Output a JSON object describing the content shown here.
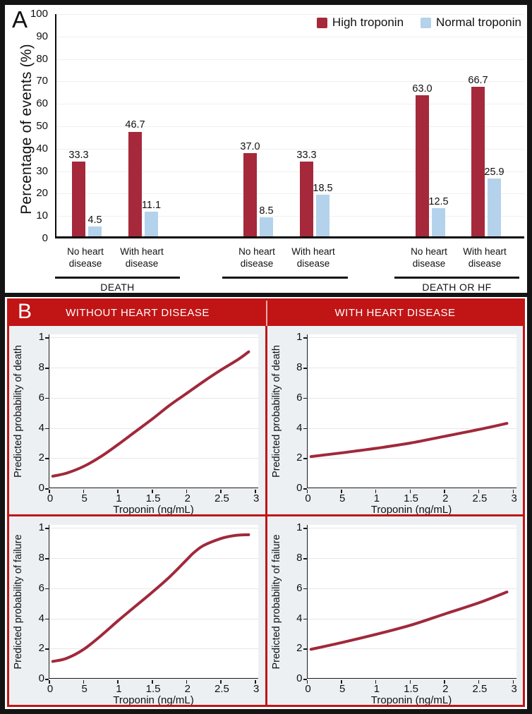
{
  "figure": {
    "panelA_label": "A",
    "panelB_label": "B"
  },
  "panelB": {
    "column_headers": [
      "WITHOUT HEART DISEASE",
      "WITH HEART DISEASE"
    ]
  },
  "colors": {
    "high_troponin": "#A5293B",
    "normal_troponin": "#B4D2EB",
    "panelB_red": "#C11415",
    "axis_black": "#1A1A1A"
  },
  "chart_data": [
    {
      "id": "panel-a-event-bars",
      "type": "bar",
      "panel_label": "A",
      "ylabel": "Percentage of events (%)",
      "ylim": [
        0,
        100
      ],
      "yticks": [
        0,
        10,
        20,
        30,
        40,
        50,
        60,
        70,
        80,
        90,
        100
      ],
      "grid": "horizontal-light",
      "legend_position": "top-right",
      "series": [
        {
          "name": "High troponin",
          "color": "#A5293B"
        },
        {
          "name": "Normal troponin",
          "color": "#B4D2EB"
        }
      ],
      "groups": [
        {
          "label": "DEATH",
          "clusters": [
            {
              "category": "No heart disease",
              "values": {
                "high": 33.3,
                "normal": 4.5
              },
              "value_labels": {
                "high": "33.3",
                "normal": "4.5"
              }
            },
            {
              "category": "With heart disease",
              "values": {
                "high": 46.7,
                "normal": 11.1
              },
              "value_labels": {
                "high": "46.7",
                "normal": "11.1"
              }
            }
          ]
        },
        {
          "label": "",
          "clusters": [
            {
              "category": "No heart disease",
              "values": {
                "high": 37.0,
                "normal": 8.5
              },
              "value_labels": {
                "high": "37.0",
                "normal": "8.5"
              }
            },
            {
              "category": "With heart disease",
              "values": {
                "high": 33.3,
                "normal": 18.5
              },
              "value_labels": {
                "high": "33.3",
                "normal": "18.5"
              }
            }
          ]
        },
        {
          "label": "DEATH OR HF",
          "clusters": [
            {
              "category": "No heart disease",
              "values": {
                "high": 63.0,
                "normal": 12.5
              },
              "value_labels": {
                "high": "63.0",
                "normal": "12.5"
              }
            },
            {
              "category": "With heart disease",
              "values": {
                "high": 66.7,
                "normal": 25.9
              },
              "value_labels": {
                "high": "66.7",
                "normal": "25.9"
              }
            }
          ]
        }
      ]
    },
    {
      "id": "prob-death-without-hd",
      "type": "line",
      "panel_label": "B",
      "column_header": "WITHOUT HEART DISEASE",
      "ylabel": "Predicted probability of death",
      "xlabel": "Troponin (ng/mL)",
      "xlim": [
        0,
        3
      ],
      "ylim": [
        0,
        1
      ],
      "xticks": {
        "values": [
          0,
          0.5,
          1,
          1.5,
          2,
          2.5,
          3
        ],
        "labels": [
          "0",
          "5",
          "1",
          "1.5",
          "2",
          "2.5",
          "3"
        ]
      },
      "yticks": {
        "values": [
          0,
          0.2,
          0.4,
          0.6,
          0.8,
          1
        ],
        "labels": [
          "0",
          "2",
          "4",
          "6",
          "8",
          "1"
        ]
      },
      "line_color": "#A0293B",
      "points": [
        [
          0.05,
          0.08
        ],
        [
          0.25,
          0.1
        ],
        [
          0.5,
          0.145
        ],
        [
          0.75,
          0.21
        ],
        [
          1,
          0.29
        ],
        [
          1.25,
          0.375
        ],
        [
          1.5,
          0.46
        ],
        [
          1.75,
          0.55
        ],
        [
          2,
          0.63
        ],
        [
          2.25,
          0.71
        ],
        [
          2.5,
          0.785
        ],
        [
          2.75,
          0.855
        ],
        [
          2.9,
          0.905
        ]
      ]
    },
    {
      "id": "prob-death-with-hd",
      "type": "line",
      "panel_label": "B",
      "column_header": "WITH HEART DISEASE",
      "ylabel": "Predicted probability of death",
      "xlabel": "Troponin (ng/mL)",
      "xlim": [
        0,
        3
      ],
      "ylim": [
        0,
        1
      ],
      "xticks": {
        "values": [
          0,
          0.5,
          1,
          1.5,
          2,
          2.5,
          3
        ],
        "labels": [
          "0",
          "5",
          "1",
          "1.5",
          "2",
          "2.5",
          "3"
        ]
      },
      "yticks": {
        "values": [
          0,
          0.2,
          0.4,
          0.6,
          0.8,
          1
        ],
        "labels": [
          "0",
          "2",
          "4",
          "6",
          "8",
          "1"
        ]
      },
      "line_color": "#A0293B",
      "points": [
        [
          0.05,
          0.21
        ],
        [
          0.5,
          0.235
        ],
        [
          1,
          0.265
        ],
        [
          1.5,
          0.3
        ],
        [
          2,
          0.345
        ],
        [
          2.5,
          0.39
        ],
        [
          2.9,
          0.43
        ]
      ]
    },
    {
      "id": "prob-failure-without-hd",
      "type": "line",
      "panel_label": "B",
      "column_header": "WITHOUT HEART DISEASE",
      "ylabel": "Predicted probability of failure",
      "xlabel": "Troponin (ng/mL)",
      "xlim": [
        0,
        3
      ],
      "ylim": [
        0,
        1
      ],
      "xticks": {
        "values": [
          0,
          0.5,
          1,
          1.5,
          2,
          2.5,
          3
        ],
        "labels": [
          "0",
          "5",
          "1",
          "1.5",
          "2",
          "2.5",
          "3"
        ]
      },
      "yticks": {
        "values": [
          0,
          0.2,
          0.4,
          0.6,
          0.8,
          1
        ],
        "labels": [
          "0",
          "2",
          "4",
          "6",
          "8",
          "1"
        ]
      },
      "line_color": "#A0293B",
      "points": [
        [
          0.05,
          0.115
        ],
        [
          0.25,
          0.135
        ],
        [
          0.5,
          0.195
        ],
        [
          0.75,
          0.285
        ],
        [
          1,
          0.385
        ],
        [
          1.25,
          0.48
        ],
        [
          1.5,
          0.575
        ],
        [
          1.75,
          0.675
        ],
        [
          2,
          0.79
        ],
        [
          2.1,
          0.835
        ],
        [
          2.25,
          0.885
        ],
        [
          2.5,
          0.93
        ],
        [
          2.7,
          0.95
        ],
        [
          2.9,
          0.955
        ]
      ]
    },
    {
      "id": "prob-failure-with-hd",
      "type": "line",
      "panel_label": "B",
      "column_header": "WITH HEART DISEASE",
      "ylabel": "Predicted probability of failure",
      "xlabel": "Troponin (ng/mL)",
      "xlim": [
        0,
        3
      ],
      "ylim": [
        0,
        1
      ],
      "xticks": {
        "values": [
          0,
          0.5,
          1,
          1.5,
          2,
          2.5,
          3
        ],
        "labels": [
          "0",
          "5",
          "1",
          "1.5",
          "2",
          "2.5",
          "3"
        ]
      },
      "yticks": {
        "values": [
          0,
          0.2,
          0.4,
          0.6,
          0.8,
          1
        ],
        "labels": [
          "0",
          "2",
          "4",
          "6",
          "8",
          "1"
        ]
      },
      "line_color": "#A0293B",
      "points": [
        [
          0.05,
          0.195
        ],
        [
          0.5,
          0.24
        ],
        [
          1,
          0.295
        ],
        [
          1.5,
          0.355
        ],
        [
          2,
          0.43
        ],
        [
          2.5,
          0.505
        ],
        [
          2.9,
          0.575
        ]
      ]
    }
  ]
}
